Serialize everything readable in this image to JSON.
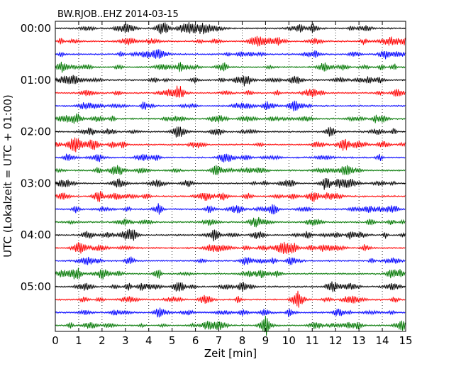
{
  "chart_data": {
    "type": "line",
    "title": "BW.RJOB..EHZ 2014-03-15",
    "xlabel": "Zeit  [min]",
    "ylabel": "UTC (Lokalzeit = UTC + 01:00)",
    "xlim": [
      0,
      15
    ],
    "xticks": [
      "0",
      "1",
      "2",
      "3",
      "4",
      "5",
      "6",
      "7",
      "8",
      "9",
      "10",
      "11",
      "12",
      "13",
      "14",
      "15"
    ],
    "yticks": [
      "00:00",
      "01:00",
      "02:00",
      "03:00",
      "04:00",
      "05:00"
    ],
    "trace_interval_min": 15,
    "trace_count": 24,
    "trace_colors": [
      "#000000",
      "#ff0000",
      "#0000ff",
      "#007700"
    ],
    "grid": "vertical-dotted"
  }
}
